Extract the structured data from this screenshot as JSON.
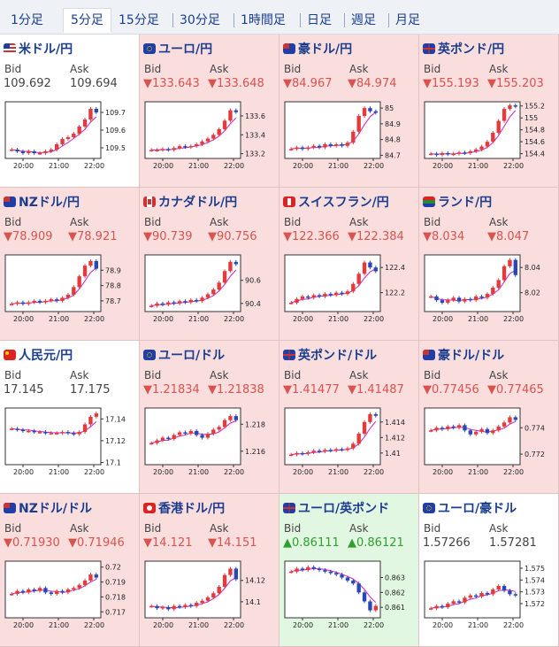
{
  "tabs": [
    "1分足",
    "5分足",
    "15分足",
    "30分足",
    "1時間足",
    "日足",
    "週足",
    "月足"
  ],
  "active_tab": 1,
  "colors": {
    "down": "#d9534f",
    "up": "#2f9e2f",
    "neutral": "#444444",
    "candle_up": "#e23b3b",
    "candle_down": "#2a47b8",
    "ma": "#d020c0",
    "signal": "#27a4b8"
  },
  "pairs": [
    {
      "name": "米ドル/円",
      "flag": "us-flag-icon",
      "bid_label": "Bid",
      "ask_label": "Ask",
      "bid": "109.692",
      "ask": "109.694",
      "dir": "none",
      "bg": "white",
      "yticks": [
        "109.7",
        "109.6",
        "109.5"
      ],
      "xticks": [
        "20:00",
        "21:00",
        "22:00"
      ],
      "chart_data": {
        "type": "line",
        "series": [
          {
            "values": [
              109.49,
              109.48,
              109.47,
              109.48,
              109.47,
              109.47,
              109.48,
              109.49,
              109.52,
              109.55,
              109.56,
              109.58,
              109.62,
              109.66,
              109.72,
              109.7
            ]
          }
        ],
        "ylim": [
          109.44,
          109.76
        ]
      }
    },
    {
      "name": "ユーロ/円",
      "flag": "eu-flag-icon",
      "bid_label": "Bid",
      "ask_label": "Ask",
      "bid": "▼133.643",
      "ask": "▼133.648",
      "dir": "down",
      "bg": "red",
      "yticks": [
        "133.6",
        "133.4",
        "133.2"
      ],
      "xticks": [
        "20:00",
        "21:00",
        "22:00"
      ],
      "chart_data": {
        "type": "line",
        "series": [
          {
            "values": [
              133.24,
              133.24,
              133.25,
              133.24,
              133.26,
              133.28,
              133.27,
              133.28,
              133.3,
              133.33,
              133.36,
              133.4,
              133.46,
              133.55,
              133.66,
              133.64
            ]
          }
        ],
        "ylim": [
          133.15,
          133.75
        ]
      }
    },
    {
      "name": "豪ドル/円",
      "flag": "au-flag-icon",
      "bid_label": "Bid",
      "ask_label": "Ask",
      "bid": "▼84.967",
      "ask": "▼84.974",
      "dir": "down",
      "bg": "red",
      "yticks": [
        "85",
        "84.9",
        "84.8",
        "84.7"
      ],
      "xticks": [
        "20:00",
        "21:00",
        "22:00"
      ],
      "chart_data": {
        "type": "line",
        "series": [
          {
            "values": [
              84.74,
              84.75,
              84.74,
              84.75,
              84.76,
              84.75,
              84.77,
              84.76,
              84.77,
              84.76,
              84.78,
              84.85,
              84.95,
              85.0,
              84.98,
              84.97
            ]
          }
        ],
        "ylim": [
          84.68,
          85.04
        ]
      }
    },
    {
      "name": "英ポンド/円",
      "flag": "uk-flag-icon",
      "bid_label": "Bid",
      "ask_label": "Ask",
      "bid": "▼155.193",
      "ask": "▼155.203",
      "dir": "down",
      "bg": "red",
      "yticks": [
        "155.2",
        "155",
        "154.8",
        "154.6",
        "154.4"
      ],
      "xticks": [
        "20:00",
        "21:00",
        "22:00"
      ],
      "chart_data": {
        "type": "line",
        "series": [
          {
            "values": [
              154.4,
              154.38,
              154.41,
              154.39,
              154.4,
              154.42,
              154.41,
              154.44,
              154.47,
              154.52,
              154.6,
              154.75,
              154.95,
              155.15,
              155.21,
              155.19
            ]
          }
        ],
        "ylim": [
          154.32,
          155.27
        ]
      }
    },
    {
      "name": "NZドル/円",
      "flag": "nz-flag-icon",
      "bid_label": "Bid",
      "ask_label": "Ask",
      "bid": "▼78.909",
      "ask": "▼78.921",
      "dir": "down",
      "bg": "red",
      "yticks": [
        "78.9",
        "78.8",
        "78.7"
      ],
      "xticks": [
        "20:00",
        "21:00",
        "22:00"
      ],
      "chart_data": {
        "type": "line",
        "series": [
          {
            "values": [
              78.68,
              78.69,
              78.68,
              78.69,
              78.7,
              78.69,
              78.7,
              78.71,
              78.7,
              78.72,
              78.74,
              78.79,
              78.86,
              78.93,
              78.96,
              78.91
            ]
          }
        ],
        "ylim": [
          78.63,
          79.0
        ]
      }
    },
    {
      "name": "カナダドル/円",
      "flag": "ca-flag-icon",
      "bid_label": "Bid",
      "ask_label": "Ask",
      "bid": "▼90.739",
      "ask": "▼90.756",
      "dir": "down",
      "bg": "red",
      "yticks": [
        "90.6",
        "90.4"
      ],
      "xticks": [
        "20:00",
        "21:00",
        "22:00"
      ],
      "chart_data": {
        "type": "line",
        "series": [
          {
            "values": [
              90.38,
              90.4,
              90.39,
              90.41,
              90.4,
              90.42,
              90.41,
              90.43,
              90.42,
              90.45,
              90.48,
              90.52,
              90.58,
              90.68,
              90.76,
              90.74
            ]
          }
        ],
        "ylim": [
          90.33,
          90.82
        ]
      }
    },
    {
      "name": "スイスフラン/円",
      "flag": "ch-flag-icon",
      "bid_label": "Bid",
      "ask_label": "Ask",
      "bid": "▼122.366",
      "ask": "▼122.384",
      "dir": "down",
      "bg": "red",
      "yticks": [
        "122.4",
        "122.2"
      ],
      "xticks": [
        "20:00",
        "21:00",
        "22:00"
      ],
      "chart_data": {
        "type": "line",
        "series": [
          {
            "values": [
              122.12,
              122.15,
              122.17,
              122.16,
              122.18,
              122.17,
              122.19,
              122.18,
              122.2,
              122.19,
              122.21,
              122.27,
              122.35,
              122.44,
              122.4,
              122.37
            ]
          }
        ],
        "ylim": [
          122.05,
          122.5
        ]
      }
    },
    {
      "name": "ランド/円",
      "flag": "za-flag-icon",
      "bid_label": "Bid",
      "ask_label": "Ask",
      "bid": "▼8.034",
      "ask": "▼8.047",
      "dir": "down",
      "bg": "red",
      "yticks": [
        "8.04",
        "8.02"
      ],
      "xticks": [
        "20:00",
        "21:00",
        "22:00"
      ],
      "chart_data": {
        "type": "line",
        "series": [
          {
            "values": [
              8.017,
              8.014,
              8.012,
              8.014,
              8.016,
              8.013,
              8.015,
              8.014,
              8.017,
              8.016,
              8.019,
              8.024,
              8.03,
              8.041,
              8.046,
              8.034
            ]
          }
        ],
        "ylim": [
          8.005,
          8.05
        ]
      }
    },
    {
      "name": "人民元/円",
      "flag": "cn-flag-icon",
      "bid_label": "Bid",
      "ask_label": "Ask",
      "bid": "17.145",
      "ask": "17.175",
      "dir": "none",
      "bg": "white",
      "yticks": [
        "17.14",
        "17.12",
        "17.1"
      ],
      "xticks": [
        "20:00",
        "21:00",
        "22:00"
      ],
      "chart_data": {
        "type": "line",
        "series": [
          {
            "values": [
              17.131,
              17.13,
              17.129,
              17.129,
              17.128,
              17.128,
              17.127,
              17.127,
              17.127,
              17.128,
              17.127,
              17.126,
              17.128,
              17.135,
              17.142,
              17.145
            ]
          }
        ],
        "ylim": [
          17.098,
          17.15
        ]
      }
    },
    {
      "name": "ユーロ/ドル",
      "flag": "eu-flag-icon",
      "bid_label": "Bid",
      "ask_label": "Ask",
      "bid": "▼1.21834",
      "ask": "▼1.21838",
      "dir": "down",
      "bg": "red",
      "yticks": [
        "1.218",
        "1.216"
      ],
      "xticks": [
        "20:00",
        "21:00",
        "22:00"
      ],
      "chart_data": {
        "type": "line",
        "series": [
          {
            "values": [
              1.2166,
              1.2168,
              1.217,
              1.2169,
              1.2172,
              1.2174,
              1.2173,
              1.2175,
              1.2172,
              1.217,
              1.2173,
              1.2176,
              1.2178,
              1.2183,
              1.2186,
              1.2183
            ]
          }
        ],
        "ylim": [
          1.215,
          1.2192
        ]
      }
    },
    {
      "name": "英ポンド/ドル",
      "flag": "uk-flag-icon",
      "bid_label": "Bid",
      "ask_label": "Ask",
      "bid": "▼1.41477",
      "ask": "▼1.41487",
      "dir": "down",
      "bg": "red",
      "yticks": [
        "1.414",
        "1.412",
        "1.41"
      ],
      "xticks": [
        "20:00",
        "21:00",
        "22:00"
      ],
      "chart_data": {
        "type": "line",
        "series": [
          {
            "values": [
              1.4098,
              1.41,
              1.4099,
              1.4101,
              1.4103,
              1.4102,
              1.4104,
              1.4103,
              1.4105,
              1.4104,
              1.4106,
              1.4112,
              1.4125,
              1.414,
              1.415,
              1.4148
            ]
          }
        ],
        "ylim": [
          1.4085,
          1.4158
        ]
      }
    },
    {
      "name": "豪ドル/ドル",
      "flag": "au-flag-icon",
      "bid_label": "Bid",
      "ask_label": "Ask",
      "bid": "▼0.77456",
      "ask": "▼0.77465",
      "dir": "down",
      "bg": "red",
      "yticks": [
        "0.774",
        "0.772"
      ],
      "xticks": [
        "20:00",
        "21:00",
        "22:00"
      ],
      "chart_data": {
        "type": "line",
        "series": [
          {
            "values": [
              0.7738,
              0.774,
              0.7739,
              0.7741,
              0.774,
              0.7742,
              0.7738,
              0.7735,
              0.7737,
              0.7739,
              0.7736,
              0.7738,
              0.7741,
              0.7744,
              0.7748,
              0.7746
            ]
          }
        ],
        "ylim": [
          0.7712,
          0.7755
        ]
      }
    },
    {
      "name": "NZドル/ドル",
      "flag": "nz-flag-icon",
      "bid_label": "Bid",
      "ask_label": "Ask",
      "bid": "▼0.71930",
      "ask": "▼0.71946",
      "dir": "down",
      "bg": "red",
      "yticks": [
        "0.72",
        "0.719",
        "0.718",
        "0.717"
      ],
      "xticks": [
        "20:00",
        "21:00",
        "22:00"
      ],
      "chart_data": {
        "type": "line",
        "series": [
          {
            "values": [
              0.7182,
              0.7184,
              0.7183,
              0.7185,
              0.7184,
              0.7186,
              0.7183,
              0.7182,
              0.7184,
              0.7183,
              0.7185,
              0.7186,
              0.7188,
              0.7191,
              0.7195,
              0.7193
            ]
          }
        ],
        "ylim": [
          0.7166,
          0.7204
        ]
      }
    },
    {
      "name": "香港ドル/円",
      "flag": "hk-flag-icon",
      "bid_label": "Bid",
      "ask_label": "Ask",
      "bid": "▼14.121",
      "ask": "▼14.151",
      "dir": "down",
      "bg": "red",
      "yticks": [
        "14.12",
        "14.1"
      ],
      "xticks": [
        "20:00",
        "21:00",
        "22:00"
      ],
      "chart_data": {
        "type": "line",
        "series": [
          {
            "values": [
              14.096,
              14.094,
              14.095,
              14.093,
              14.096,
              14.095,
              14.097,
              14.096,
              14.099,
              14.101,
              14.104,
              14.108,
              14.114,
              14.125,
              14.131,
              14.121
            ]
          }
        ],
        "ylim": [
          14.085,
          14.138
        ]
      }
    },
    {
      "name": "ユーロ/英ポンド",
      "flag": "uk-flag-icon",
      "bid_label": "Bid",
      "ask_label": "Ask",
      "bid": "▲0.86111",
      "ask": "▲0.86121",
      "dir": "up",
      "bg": "green",
      "yticks": [
        "0.863",
        "0.862",
        "0.861"
      ],
      "xticks": [
        "20:00",
        "21:00",
        "22:00"
      ],
      "chart_data": {
        "type": "line",
        "series": [
          {
            "values": [
              0.8634,
              0.8636,
              0.8635,
              0.8637,
              0.8636,
              0.8635,
              0.8634,
              0.8633,
              0.8632,
              0.863,
              0.8628,
              0.8626,
              0.862,
              0.8614,
              0.8608,
              0.8611
            ]
          }
        ],
        "ylim": [
          0.8603,
          0.8641
        ]
      }
    },
    {
      "name": "ユーロ/豪ドル",
      "flag": "eu-flag-icon",
      "bid_label": "Bid",
      "ask_label": "Ask",
      "bid": "1.57266",
      "ask": "1.57281",
      "dir": "none",
      "bg": "white",
      "yticks": [
        "1.575",
        "1.574",
        "1.573",
        "1.572"
      ],
      "xticks": [
        "20:00",
        "21:00",
        "22:00"
      ],
      "chart_data": {
        "type": "line",
        "series": [
          {
            "values": [
              1.5716,
              1.5718,
              1.5717,
              1.572,
              1.5722,
              1.5721,
              1.5725,
              1.5727,
              1.5726,
              1.5729,
              1.5728,
              1.5732,
              1.5735,
              1.5731,
              1.5728,
              1.5727
            ]
          }
        ],
        "ylim": [
          1.5708,
          1.5756
        ]
      }
    }
  ]
}
